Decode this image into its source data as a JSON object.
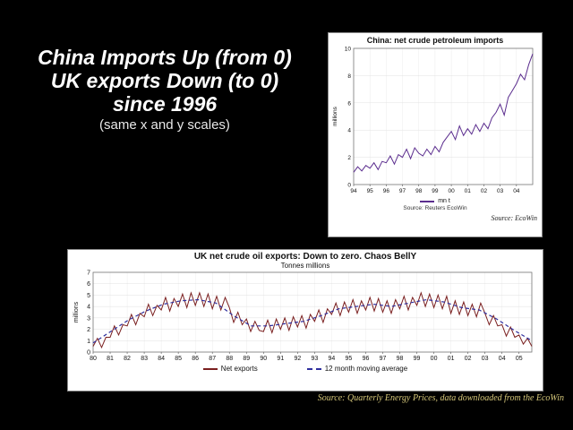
{
  "slide": {
    "title_lines": [
      "China Imports Up (from 0)",
      "UK exports Down (to 0)",
      "since 1996"
    ],
    "subtitle": "(same x and y scales)"
  },
  "uk_source": "Source: Quarterly Energy Prices, data downloaded from the EcoWin",
  "chart_data": [
    {
      "type": "line",
      "title": "China: net crude petroleum imports",
      "xlabel": "",
      "ylabel": "millions",
      "ylim": [
        0,
        10
      ],
      "yticks": [
        0,
        2,
        4,
        6,
        8,
        10
      ],
      "xticks": [
        "94",
        "95",
        "96",
        "97",
        "98",
        "99",
        "00",
        "01",
        "02",
        "03",
        "04"
      ],
      "points_per_label": 4,
      "tick_font": 6.5,
      "grid": "both",
      "legend_position": "bottom",
      "legend": [
        {
          "label": "mn t",
          "color": "#5b2d8e",
          "dash": ""
        }
      ],
      "footnote": "Source: Reuters EcoWin",
      "source_note": "Source: EcoWin",
      "series": [
        {
          "name": "net crude petroleum imports",
          "color": "#5b2d8e",
          "width": 1,
          "dash": "",
          "values": [
            0.9,
            1.3,
            1.0,
            1.4,
            1.2,
            1.6,
            1.1,
            1.7,
            1.6,
            2.1,
            1.5,
            2.2,
            2.0,
            2.6,
            1.9,
            2.7,
            2.3,
            2.1,
            2.6,
            2.2,
            2.8,
            2.4,
            3.1,
            3.5,
            3.9,
            3.3,
            4.3,
            3.6,
            4.1,
            3.7,
            4.4,
            3.9,
            4.5,
            4.1,
            4.9,
            5.3,
            5.9,
            5.1,
            6.4,
            6.9,
            7.4,
            8.1,
            7.7,
            8.8,
            9.6
          ]
        }
      ]
    },
    {
      "type": "line",
      "title": "UK net crude oil exports: Down to zero. Chaos BellY",
      "subtitle": "Tonnes millions",
      "xlabel": "",
      "ylabel": "millions",
      "ylim": [
        0,
        7
      ],
      "yticks": [
        0,
        1,
        2,
        3,
        4,
        5,
        6,
        7
      ],
      "xticks": [
        "80",
        "81",
        "82",
        "83",
        "84",
        "85",
        "86",
        "87",
        "88",
        "89",
        "90",
        "91",
        "92",
        "93",
        "94",
        "95",
        "96",
        "97",
        "98",
        "99",
        "00",
        "01",
        "02",
        "03",
        "04",
        "05"
      ],
      "points_per_label": 4,
      "tick_font": 7,
      "grid": "both",
      "legend_position": "bottom",
      "legend": [
        {
          "label": "Net exports",
          "color": "#7a1f1f",
          "dash": ""
        },
        {
          "label": "12 month moving average",
          "color": "#2f2f9e",
          "dash": "4,3"
        }
      ],
      "series": [
        {
          "name": "Net exports",
          "color": "#7a1f1f",
          "width": 1,
          "dash": "",
          "values": [
            0.5,
            1.2,
            0.4,
            1.3,
            1.3,
            2.3,
            1.5,
            2.4,
            2.3,
            3.3,
            2.4,
            3.4,
            3.1,
            4.2,
            3.2,
            4.1,
            3.7,
            4.8,
            3.6,
            4.7,
            4.0,
            5.1,
            3.9,
            5.2,
            4.1,
            5.2,
            4.0,
            5.1,
            3.8,
            4.9,
            3.7,
            4.8,
            3.9,
            2.6,
            3.5,
            2.4,
            2.9,
            1.8,
            2.7,
            1.9,
            1.8,
            2.8,
            1.7,
            2.9,
            2.0,
            3.0,
            1.9,
            3.1,
            2.2,
            3.2,
            2.1,
            3.3,
            2.7,
            3.7,
            2.6,
            3.8,
            3.3,
            4.3,
            3.2,
            4.4,
            3.5,
            4.6,
            3.4,
            4.5,
            3.7,
            4.8,
            3.6,
            4.7,
            3.5,
            4.5,
            3.4,
            4.6,
            3.8,
            4.9,
            3.7,
            4.8,
            4.1,
            5.2,
            4.0,
            5.1,
            3.9,
            5.0,
            3.8,
            4.9,
            3.4,
            4.5,
            3.3,
            4.4,
            3.2,
            4.2,
            3.1,
            4.3,
            3.4,
            2.4,
            3.2,
            2.3,
            2.4,
            1.4,
            2.2,
            1.3,
            1.5,
            0.7,
            1.2,
            0.5
          ]
        },
        {
          "name": "12 month moving average",
          "color": "#2f2f9e",
          "width": 1.2,
          "dash": "4,3",
          "values": [
            0.8,
            1.8,
            2.8,
            3.6,
            4.2,
            4.5,
            4.6,
            4.3,
            3.2,
            2.3,
            2.3,
            2.5,
            2.7,
            3.2,
            3.8,
            4.0,
            4.2,
            4.0,
            4.3,
            4.6,
            4.4,
            3.9,
            3.7,
            2.9,
            1.9,
            1.0
          ]
        }
      ]
    }
  ]
}
